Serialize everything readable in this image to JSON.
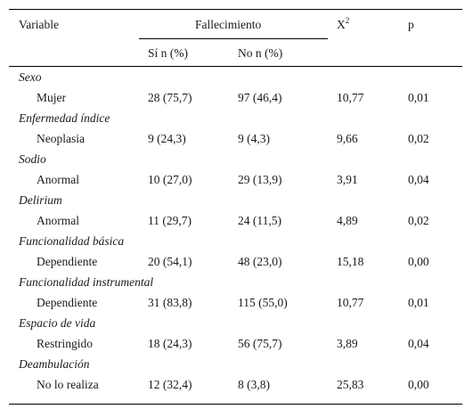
{
  "header": {
    "variable": "Variable",
    "fallecimiento": "Fallecimiento",
    "chi_base": "X",
    "chi_sup": "2",
    "p": "p",
    "si": "Sí n (%)",
    "no": "No n (%)"
  },
  "groups": [
    {
      "name": "Sexo",
      "label": "Mujer",
      "si": "28 (75,7)",
      "no": "97 (46,4)",
      "chi": "10,77",
      "p": "0,01"
    },
    {
      "name": "Enfermedad índice",
      "label": "Neoplasia",
      "si": "9 (24,3)",
      "no": "9 (4,3)",
      "chi": "9,66",
      "p": "0,02"
    },
    {
      "name": "Sodio",
      "label": "Anormal",
      "si": "10 (27,0)",
      "no": "29 (13,9)",
      "chi": "3,91",
      "p": "0,04"
    },
    {
      "name": "Delirium",
      "label": "Anormal",
      "si": "11 (29,7)",
      "no": "24 (11,5)",
      "chi": "4,89",
      "p": "0,02"
    },
    {
      "name": "Funcionalidad básica",
      "label": "Dependiente",
      "si": "20 (54,1)",
      "no": "48 (23,0)",
      "chi": "15,18",
      "p": "0,00"
    },
    {
      "name": "Funcionalidad instrumental",
      "label": "Dependiente",
      "si": "31 (83,8)",
      "no": "115 (55,0)",
      "chi": "10,77",
      "p": "0,01"
    },
    {
      "name": "Espacio de vida",
      "label": "Restringido",
      "si": "18 (24,3)",
      "no": "56 (75,7)",
      "chi": "3,89",
      "p": "0,04"
    },
    {
      "name": "Deambulación",
      "label": "No lo realiza",
      "si": "12 (32,4)",
      "no": "8 (3,8)",
      "chi": "25,83",
      "p": "0,00"
    }
  ]
}
